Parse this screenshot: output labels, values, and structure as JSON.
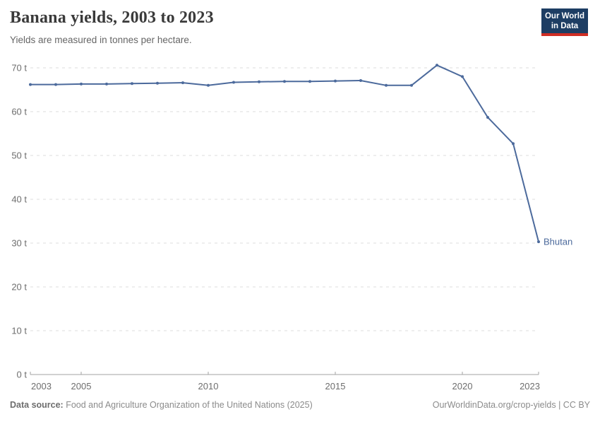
{
  "header": {
    "title": "Banana yields, 2003 to 2023",
    "subtitle": "Yields are measured in tonnes per hectare.",
    "logo": {
      "line1": "Our World",
      "line2": "in Data",
      "bg_color": "#1d3d63",
      "strip_color": "#cf2d24"
    }
  },
  "footer": {
    "source_label": "Data source:",
    "source_text": "Food and Agriculture Organization of the United Nations (2025)",
    "link": "OurWorldinData.org/crop-yields",
    "separator": "|",
    "license": "CC BY"
  },
  "chart_data": {
    "type": "line",
    "title": "Banana yields, 2003 to 2023",
    "subtitle": "Yields are measured in tonnes per hectare.",
    "xlabel": "",
    "ylabel": "tonnes per hectare",
    "unit_suffix": " t",
    "grid": "dashed-horizontal",
    "legend_position": "end-of-line-label",
    "ylim": [
      0,
      70
    ],
    "y_ticks": [
      0,
      10,
      20,
      30,
      40,
      50,
      60,
      70
    ],
    "x_ticks": [
      2003,
      2005,
      2010,
      2015,
      2020,
      2023
    ],
    "x": [
      2003,
      2004,
      2005,
      2006,
      2007,
      2008,
      2009,
      2010,
      2011,
      2012,
      2013,
      2014,
      2015,
      2016,
      2017,
      2018,
      2019,
      2020,
      2021,
      2022,
      2023
    ],
    "series": [
      {
        "name": "Bhutan",
        "color": "#4c6a9c",
        "values": [
          66.2,
          66.2,
          66.3,
          66.3,
          66.4,
          66.5,
          66.6,
          66.0,
          66.7,
          66.8,
          66.9,
          66.9,
          67.0,
          67.1,
          66.0,
          66.0,
          70.6,
          68.0,
          58.7,
          52.7,
          30.3
        ]
      }
    ],
    "colors": {
      "grid": "#dedede",
      "axis": "#a3a3a3",
      "tick_label": "#6e6e6e"
    }
  }
}
